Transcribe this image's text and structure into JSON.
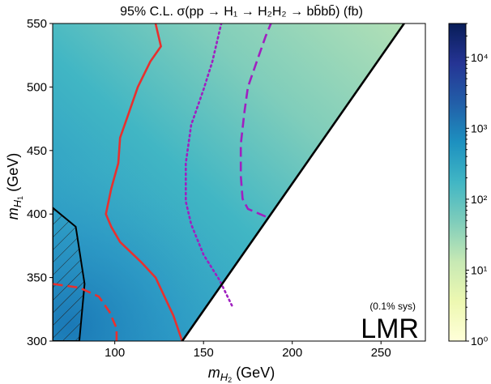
{
  "chart_data": {
    "type": "heatmap",
    "title": "95% C.L. σ(pp → H₁ → H₂H₂ → bb̄bb̄) (fb)",
    "xlabel": "m_H2 (GeV)",
    "ylabel": "m_H1 (GeV)",
    "xlim": [
      65,
      275
    ],
    "ylim": [
      300,
      550
    ],
    "x_ticks": [
      "100",
      "150",
      "200",
      "250"
    ],
    "x_tick_values": [
      100,
      150,
      200,
      250
    ],
    "y_ticks": [
      "300",
      "350",
      "400",
      "450",
      "500",
      "550"
    ],
    "y_tick_values": [
      300,
      350,
      400,
      450,
      500,
      550
    ],
    "colorbar": {
      "scale": "log",
      "range": [
        1,
        30000
      ],
      "ticks": [
        "10⁰",
        "10¹",
        "10²",
        "10³",
        "10⁴"
      ],
      "tick_values": [
        1,
        10,
        100,
        1000,
        10000
      ],
      "colors": [
        "#ffffd9",
        "#edf8b1",
        "#c7e9b4",
        "#7fcdbb",
        "#41b6c4",
        "#1d91c0",
        "#225ea8",
        "#253494",
        "#081d58"
      ]
    },
    "kinematic_boundary": [
      [
        138,
        300
      ],
      [
        263,
        550
      ]
    ],
    "excluded_region": [
      [
        65,
        405
      ],
      [
        78,
        390
      ],
      [
        83,
        345
      ],
      [
        80,
        300
      ],
      [
        65,
        300
      ]
    ],
    "contours": [
      {
        "style": "solid",
        "color": "#e8302e",
        "points": [
          [
            138,
            300
          ],
          [
            133,
            320
          ],
          [
            128,
            335
          ],
          [
            123,
            350
          ],
          [
            115,
            362
          ],
          [
            103,
            378
          ],
          [
            98,
            390
          ],
          [
            95,
            400
          ],
          [
            98,
            420
          ],
          [
            102,
            440
          ],
          [
            103,
            460
          ],
          [
            108,
            480
          ],
          [
            113,
            500
          ],
          [
            120,
            520
          ],
          [
            126,
            532
          ],
          [
            123,
            550
          ]
        ]
      },
      {
        "style": "dashed",
        "color": "#e8302e",
        "points": [
          [
            101,
            300
          ],
          [
            101,
            310
          ],
          [
            97,
            323
          ],
          [
            91,
            335
          ],
          [
            80,
            342
          ],
          [
            65,
            345
          ]
        ]
      },
      {
        "style": "dotted",
        "color": "#a020c0",
        "points": [
          [
            166,
            328
          ],
          [
            159,
            348
          ],
          [
            150,
            368
          ],
          [
            143,
            392
          ],
          [
            140,
            410
          ],
          [
            140,
            440
          ],
          [
            143,
            470
          ],
          [
            150,
            498
          ],
          [
            155,
            520
          ],
          [
            160,
            550
          ]
        ]
      },
      {
        "style": "dashed",
        "color": "#a020c0",
        "points": [
          [
            185,
            398
          ],
          [
            175,
            404
          ],
          [
            172,
            412
          ],
          [
            171,
            430
          ],
          [
            171,
            455
          ],
          [
            173,
            480
          ],
          [
            175,
            500
          ],
          [
            180,
            520
          ],
          [
            185,
            540
          ],
          [
            188,
            550
          ]
        ]
      }
    ],
    "annotations": {
      "note": "(0.1% sys)",
      "label": "LMR"
    },
    "grid": false
  }
}
